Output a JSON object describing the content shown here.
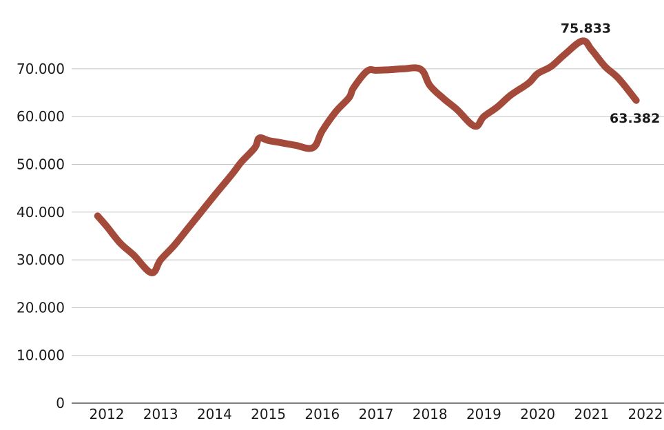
{
  "chart_data": {
    "type": "line",
    "title": "",
    "xlabel": "",
    "ylabel": "",
    "color": "#a44a3a",
    "grid": true,
    "ylim": [
      0,
      75833
    ],
    "y_ticks": [
      0,
      10000,
      20000,
      30000,
      40000,
      50000,
      60000,
      70000
    ],
    "y_tick_labels": [
      "0",
      "10.000",
      "20.000",
      "30.000",
      "40.000",
      "50.000",
      "60.000",
      "70.000"
    ],
    "x_ticks": [
      2012,
      2013,
      2014,
      2015,
      2016,
      2017,
      2018,
      2019,
      2020,
      2021,
      2022
    ],
    "x_tick_labels": [
      "2012",
      "2013",
      "2014",
      "2015",
      "2016",
      "2017",
      "2018",
      "2019",
      "2020",
      "2021",
      "2022"
    ],
    "series": [
      {
        "x": [
          2011.83,
          2012.0,
          2012.25,
          2012.5,
          2012.83,
          2013.0,
          2013.25,
          2013.5,
          2013.75,
          2014.0,
          2014.33,
          2014.5,
          2014.75,
          2014.83,
          2015.0,
          2015.25,
          2015.5,
          2015.83,
          2016.0,
          2016.25,
          2016.5,
          2016.58,
          2016.83,
          2017.0,
          2017.25,
          2017.5,
          2017.83,
          2018.0,
          2018.25,
          2018.5,
          2018.83,
          2019.0,
          2019.25,
          2019.5,
          2019.83,
          2020.0,
          2020.25,
          2020.5,
          2020.83,
          2021.0,
          2021.25,
          2021.5,
          2021.83
        ],
        "y": [
          39200,
          37000,
          33500,
          31000,
          27300,
          30000,
          33000,
          36500,
          40000,
          43500,
          48000,
          50500,
          53500,
          55500,
          55000,
          54500,
          54000,
          53500,
          57000,
          61000,
          64000,
          66000,
          69500,
          69700,
          69800,
          70000,
          69900,
          66500,
          63800,
          61500,
          58000,
          60000,
          62000,
          64500,
          67000,
          69000,
          70500,
          73000,
          75833,
          74000,
          70500,
          68000,
          63382
        ]
      }
    ],
    "annotations": [
      {
        "label": "75.833",
        "x": 2020.83,
        "y": 75833
      },
      {
        "label": "63.382",
        "x": 2021.83,
        "y": 63382
      }
    ]
  }
}
